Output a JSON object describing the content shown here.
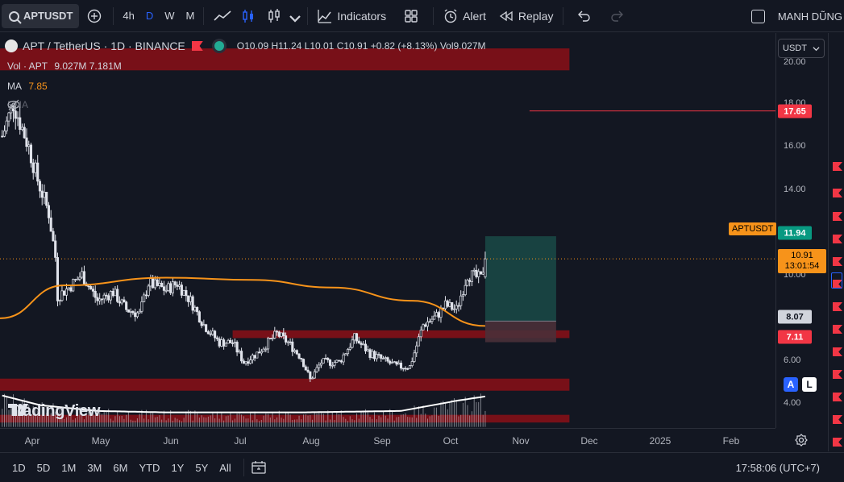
{
  "toolbar": {
    "symbol": "APTUSDT",
    "intervals": [
      "4h",
      "D",
      "W",
      "M"
    ],
    "active_interval": "D",
    "indicators_label": "Indicators",
    "alert_label": "Alert",
    "replay_label": "Replay",
    "user_name": "MANH DŨNG"
  },
  "legend": {
    "title": "APT / TetherUS · 1D · BINANCE",
    "open": "O10.09",
    "high": "H11.24",
    "low": "L10.01",
    "close": "C10.91",
    "change": "+0.82 (+8.13%)",
    "volume": "Vol9.027M",
    "vol_label": "Vol · APT",
    "vol_value1": "9.027M",
    "vol_value2": "7.181M",
    "ma_label": "MA",
    "ma_value": "7.85",
    "ema_label": "EMA"
  },
  "price_axis": {
    "currency": "USDT",
    "labels": [
      "20.00",
      "18.00",
      "16.00",
      "14.00",
      "10.00",
      "6.00",
      "4.00"
    ],
    "tags": {
      "resistance": "17.65",
      "target": "11.94",
      "symbol": "APTUSDT",
      "last_price": "10.91",
      "countdown": "13:01:54",
      "entry": "8.07",
      "stop": "7.11"
    }
  },
  "time_axis": {
    "labels": [
      "Apr",
      "May",
      "Jun",
      "Jul",
      "Aug",
      "Sep",
      "Oct",
      "Nov",
      "Dec",
      "2025",
      "Feb"
    ]
  },
  "bottom_bar": {
    "ranges": [
      "1D",
      "5D",
      "1M",
      "3M",
      "6M",
      "YTD",
      "1Y",
      "5Y",
      "All"
    ],
    "clock": "17:58:06 (UTC+7)"
  },
  "branding": {
    "logo_text": "TradingView"
  },
  "scale_buttons": {
    "auto": "A",
    "log": "L"
  },
  "colors": {
    "background": "#131722",
    "up": "#ffffff",
    "down": "#ffffff",
    "ma_line": "#f7931a",
    "zone": "#8b0f16",
    "target_zone": "#1a4a47",
    "stop_zone": "#4a3038",
    "accent": "#2962ff",
    "resistance_tag": "#f23645",
    "target_tag": "#089981"
  },
  "chart_data": {
    "type": "candlestick",
    "symbol": "APT / TetherUS",
    "interval": "1D",
    "ylim": [
      3.2,
      21.2
    ],
    "x_range": [
      "2024-03-18",
      "2025-03-03"
    ],
    "price_path": [
      [
        "2024-03-19",
        16.5
      ],
      [
        "2024-03-24",
        18.0
      ],
      [
        "2024-03-31",
        16.0
      ],
      [
        "2024-04-04",
        14.5
      ],
      [
        "2024-04-09",
        13.0
      ],
      [
        "2024-04-12",
        11.0
      ],
      [
        "2024-04-13",
        9.2
      ],
      [
        "2024-04-18",
        9.6
      ],
      [
        "2024-04-24",
        10.2
      ],
      [
        "2024-05-01",
        9.0
      ],
      [
        "2024-05-08",
        9.4
      ],
      [
        "2024-05-14",
        8.6
      ],
      [
        "2024-05-20",
        8.4
      ],
      [
        "2024-05-24",
        9.8
      ],
      [
        "2024-06-01",
        9.5
      ],
      [
        "2024-06-06",
        9.8
      ],
      [
        "2024-06-12",
        9.0
      ],
      [
        "2024-06-18",
        7.9
      ],
      [
        "2024-06-25",
        7.1
      ],
      [
        "2024-07-01",
        7.1
      ],
      [
        "2024-07-06",
        6.2
      ],
      [
        "2024-07-12",
        6.6
      ],
      [
        "2024-07-21",
        7.5
      ],
      [
        "2024-07-26",
        7.1
      ],
      [
        "2024-08-01",
        6.4
      ],
      [
        "2024-08-05",
        5.4
      ],
      [
        "2024-08-10",
        6.2
      ],
      [
        "2024-08-18",
        6.2
      ],
      [
        "2024-08-25",
        7.3
      ],
      [
        "2024-09-01",
        6.6
      ],
      [
        "2024-09-07",
        6.3
      ],
      [
        "2024-09-13",
        6.0
      ],
      [
        "2024-09-19",
        6.0
      ],
      [
        "2024-09-25",
        7.9
      ],
      [
        "2024-10-01",
        8.3
      ],
      [
        "2024-10-05",
        8.8
      ],
      [
        "2024-10-10",
        8.6
      ],
      [
        "2024-10-15",
        10.2
      ],
      [
        "2024-10-21",
        10.0
      ],
      [
        "2024-10-23",
        10.91
      ]
    ],
    "ma_path": [
      [
        "2024-03-18",
        8.2
      ],
      [
        "2024-04-16",
        9.7
      ],
      [
        "2024-06-01",
        10.05
      ],
      [
        "2024-07-10",
        9.95
      ],
      [
        "2024-08-15",
        9.6
      ],
      [
        "2024-09-20",
        9.0
      ],
      [
        "2024-10-23",
        7.85
      ]
    ],
    "volume_path": [
      [
        "2024-03-18",
        2.2
      ],
      [
        "2024-04-05",
        1.5
      ],
      [
        "2024-05-01",
        1.1
      ],
      [
        "2024-06-01",
        1.0
      ],
      [
        "2024-07-01",
        1.0
      ],
      [
        "2024-08-01",
        1.0
      ],
      [
        "2024-09-15",
        1.1
      ],
      [
        "2024-10-10",
        1.8
      ],
      [
        "2024-10-23",
        2.1
      ]
    ],
    "zones": [
      {
        "from": 19.5,
        "to": 20.5
      },
      {
        "from": 7.3,
        "to": 7.65
      },
      {
        "from": 4.9,
        "to": 5.45
      },
      {
        "from": 3.45,
        "to": 3.8
      }
    ],
    "position": {
      "target": 11.94,
      "entry": 8.07,
      "stop": 7.11,
      "start": "2024-10-23",
      "end": "2024-11-24"
    },
    "horizontal_lines": [
      17.65
    ],
    "last_price": 10.91
  }
}
